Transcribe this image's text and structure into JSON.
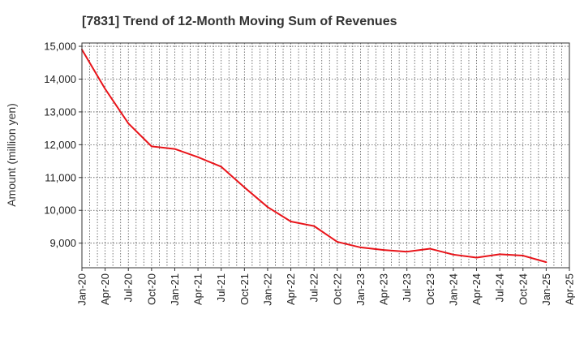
{
  "chart_data": {
    "type": "line",
    "title": "[7831]  Trend of 12-Month Moving Sum of Revenues",
    "xlabel": "",
    "ylabel": "Amount (million yen)",
    "ylim": [
      8250,
      15100
    ],
    "yticks": [
      9000,
      10000,
      11000,
      12000,
      13000,
      14000,
      15000
    ],
    "ytick_labels": [
      "9,000",
      "10,000",
      "11,000",
      "12,000",
      "13,000",
      "14,000",
      "15,000"
    ],
    "xtick_labels": [
      "Jan-20",
      "Apr-20",
      "Jul-20",
      "Oct-20",
      "Jan-21",
      "Apr-21",
      "Jul-21",
      "Oct-21",
      "Jan-22",
      "Apr-22",
      "Jul-22",
      "Oct-22",
      "Jan-23",
      "Apr-23",
      "Jul-23",
      "Oct-23",
      "Jan-24",
      "Apr-24",
      "Jul-24",
      "Oct-24",
      "Jan-25",
      "Apr-25"
    ],
    "grid": true,
    "series_color": "#e8141a",
    "series": [
      {
        "x": [
          "Jan-20",
          "Apr-20",
          "Jul-20",
          "Oct-20",
          "Jan-21",
          "Apr-21",
          "Jul-21",
          "Oct-21",
          "Jan-22",
          "Apr-22",
          "Jul-22",
          "Oct-22",
          "Jan-23",
          "Apr-23",
          "Jul-23",
          "Oct-23",
          "Jan-24",
          "Apr-24",
          "Jul-24",
          "Oct-24",
          "Jan-25"
        ],
        "values": [
          14900,
          13700,
          12650,
          11950,
          11870,
          11620,
          11330,
          10700,
          10100,
          9660,
          9520,
          9040,
          8870,
          8790,
          8740,
          8830,
          8650,
          8560,
          8660,
          8620,
          8420
        ]
      }
    ]
  }
}
